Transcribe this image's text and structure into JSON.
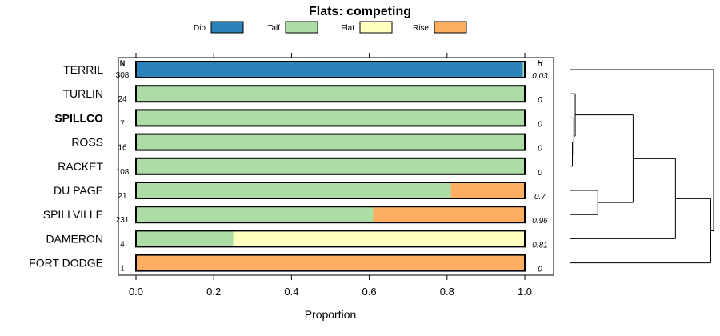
{
  "chart_data": {
    "type": "stacked-bar",
    "title": "Flats: competing",
    "xlabel": "Proportion",
    "xlim": [
      0,
      1
    ],
    "x_ticks": [
      "0.0",
      "0.2",
      "0.4",
      "0.6",
      "0.8",
      "1.0"
    ],
    "x_tick_values": [
      0,
      0.2,
      0.4,
      0.6,
      0.8,
      1.0
    ],
    "n_header": "N",
    "h_header": "H",
    "legend_position": "top",
    "legend": [
      {
        "name": "Dip",
        "color": "#2b83ba"
      },
      {
        "name": "Talf",
        "color": "#abdda4"
      },
      {
        "name": "Flat",
        "color": "#ffffbf"
      },
      {
        "name": "Rise",
        "color": "#fdae61"
      }
    ],
    "rows": [
      {
        "label": "TERRIL",
        "n": "308",
        "h": "0.03",
        "bold": false,
        "values": [
          0.995,
          0.005,
          0,
          0
        ]
      },
      {
        "label": "TURLIN",
        "n": "24",
        "h": "0",
        "bold": false,
        "values": [
          0,
          1,
          0,
          0
        ]
      },
      {
        "label": "SPILLCO",
        "n": "7",
        "h": "0",
        "bold": true,
        "values": [
          0,
          1,
          0,
          0
        ]
      },
      {
        "label": "ROSS",
        "n": "16",
        "h": "0",
        "bold": false,
        "values": [
          0,
          1,
          0,
          0
        ]
      },
      {
        "label": "RACKET",
        "n": "108",
        "h": "0",
        "bold": false,
        "values": [
          0,
          1,
          0,
          0
        ]
      },
      {
        "label": "DU PAGE",
        "n": "21",
        "h": "0.7",
        "bold": false,
        "values": [
          0,
          0.81,
          0,
          0.19
        ]
      },
      {
        "label": "SPILLVILLE",
        "n": "231",
        "h": "0.96",
        "bold": false,
        "values": [
          0,
          0.61,
          0,
          0.39
        ]
      },
      {
        "label": "DAMERON",
        "n": "4",
        "h": "0.81",
        "bold": false,
        "values": [
          0,
          0.25,
          0.75,
          0
        ]
      },
      {
        "label": "FORT DODGE",
        "n": "1",
        "h": "0",
        "bold": false,
        "values": [
          0,
          0,
          0,
          1
        ]
      }
    ],
    "dendrogram": {
      "merges": [
        {
          "a": 3,
          "b": 4,
          "height": 0.02
        },
        {
          "a": 2,
          "b": "m0",
          "height": 0.03
        },
        {
          "a": 1,
          "b": "m1",
          "height": 0.04
        },
        {
          "a": 5,
          "b": 6,
          "height": 0.2
        },
        {
          "a": "m2",
          "b": "m3",
          "height": 0.45
        },
        {
          "a": "m4",
          "b": 7,
          "height": 0.75
        },
        {
          "a": "m5",
          "b": 8,
          "height": 1.0
        },
        {
          "a": 0,
          "b": "m6",
          "height": 1.02
        }
      ]
    }
  }
}
